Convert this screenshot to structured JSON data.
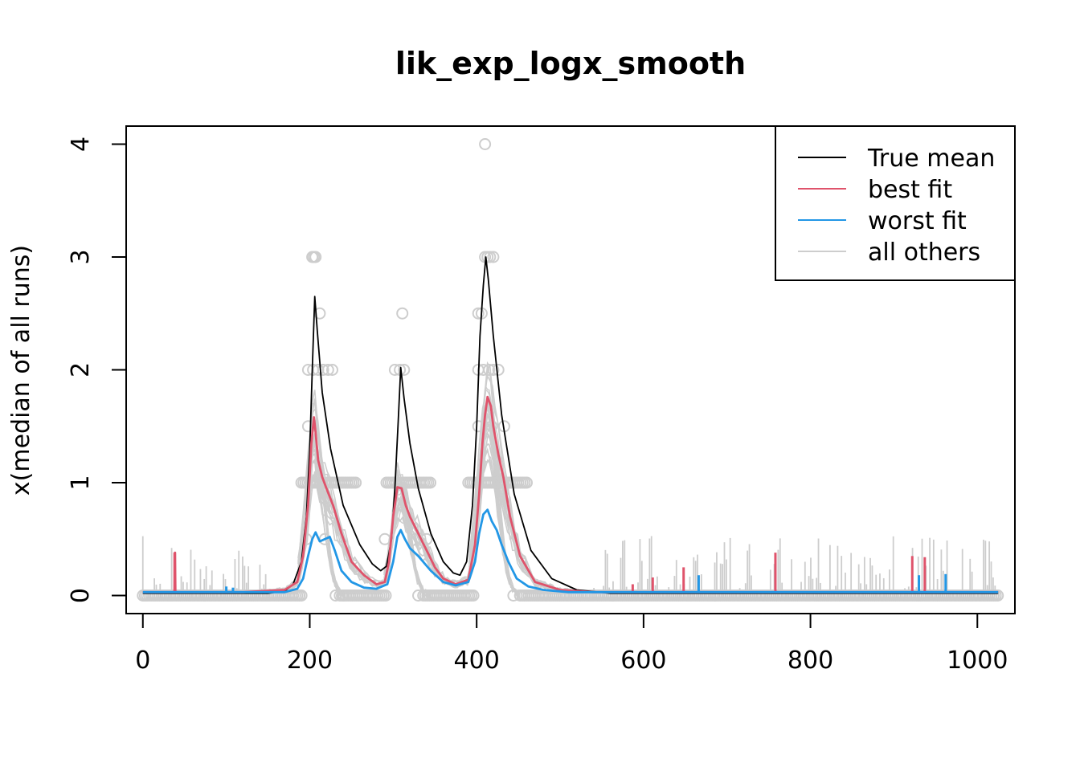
{
  "chart_data": {
    "type": "line",
    "title": "lik_exp_logx_smooth",
    "xlabel": "",
    "ylabel": "x(median of all runs)",
    "xlim": [
      -20,
      1045
    ],
    "ylim": [
      -0.16,
      4.16
    ],
    "xticks": [
      0,
      200,
      400,
      600,
      800,
      1000
    ],
    "yticks": [
      0,
      1,
      2,
      3,
      4
    ],
    "legend": {
      "position": "top-right",
      "entries": [
        {
          "label": "True mean",
          "color": "#000000"
        },
        {
          "label": "best fit",
          "color": "#DF536B"
        },
        {
          "label": "worst fit",
          "color": "#2297E6"
        },
        {
          "label": "all others",
          "color": "#CDCDCD"
        }
      ]
    },
    "true_mean_peaks": [
      {
        "x": 206,
        "y": 2.65
      },
      {
        "x": 309,
        "y": 2.02
      },
      {
        "x": 411,
        "y": 3.0
      }
    ],
    "series": [
      {
        "name": "True mean",
        "color": "#000000",
        "x": [
          0,
          150,
          170,
          180,
          190,
          196,
          200,
          203,
          206,
          209,
          215,
          225,
          240,
          260,
          275,
          285,
          292,
          298,
          302,
          306,
          309,
          313,
          320,
          330,
          345,
          360,
          372,
          380,
          388,
          395,
          400,
          404,
          408,
          411,
          414,
          420,
          430,
          445,
          465,
          490,
          520,
          560,
          1025
        ],
        "y": [
          0.02,
          0.02,
          0.04,
          0.1,
          0.3,
          0.7,
          1.3,
          2.0,
          2.65,
          2.35,
          1.8,
          1.3,
          0.8,
          0.45,
          0.28,
          0.22,
          0.26,
          0.5,
          0.95,
          1.55,
          2.02,
          1.75,
          1.35,
          0.95,
          0.55,
          0.3,
          0.2,
          0.18,
          0.3,
          0.8,
          1.5,
          2.3,
          2.75,
          3.0,
          2.8,
          2.3,
          1.6,
          0.9,
          0.4,
          0.15,
          0.05,
          0.02,
          0.02
        ]
      },
      {
        "name": "best fit",
        "color": "#DF536B",
        "x": [
          0,
          38,
          38.5,
          39,
          40,
          120,
          170,
          185,
          192,
          198,
          202,
          205,
          207,
          210,
          215,
          220,
          228,
          238,
          250,
          265,
          280,
          290,
          295,
          300,
          305,
          310,
          315,
          320,
          330,
          340,
          350,
          360,
          375,
          390,
          398,
          403,
          407,
          410,
          413,
          417,
          420,
          426,
          432,
          440,
          452,
          470,
          500,
          540,
          1025
        ],
        "y": [
          0.03,
          0.03,
          0.38,
          0.03,
          0.03,
          0.03,
          0.05,
          0.12,
          0.35,
          0.8,
          1.35,
          1.58,
          1.45,
          1.2,
          1.05,
          0.95,
          0.8,
          0.55,
          0.3,
          0.18,
          0.1,
          0.12,
          0.3,
          0.7,
          0.96,
          0.95,
          0.8,
          0.7,
          0.55,
          0.4,
          0.25,
          0.15,
          0.1,
          0.14,
          0.45,
          0.9,
          1.35,
          1.6,
          1.76,
          1.68,
          1.5,
          1.25,
          1.05,
          0.7,
          0.35,
          0.12,
          0.05,
          0.03,
          0.03
        ]
      },
      {
        "name": "worst fit",
        "color": "#2297E6",
        "x": [
          0,
          170,
          185,
          192,
          198,
          203,
          207,
          212,
          218,
          224,
          230,
          238,
          250,
          265,
          280,
          293,
          300,
          305,
          309,
          314,
          320,
          330,
          345,
          360,
          375,
          390,
          398,
          403,
          408,
          413,
          418,
          424,
          430,
          438,
          448,
          462,
          480,
          510,
          1025
        ],
        "y": [
          0.03,
          0.03,
          0.06,
          0.15,
          0.35,
          0.5,
          0.56,
          0.48,
          0.5,
          0.52,
          0.4,
          0.22,
          0.12,
          0.07,
          0.06,
          0.1,
          0.3,
          0.52,
          0.58,
          0.5,
          0.42,
          0.35,
          0.22,
          0.12,
          0.09,
          0.12,
          0.3,
          0.55,
          0.72,
          0.76,
          0.66,
          0.58,
          0.45,
          0.3,
          0.15,
          0.08,
          0.05,
          0.03,
          0.03
        ]
      }
    ],
    "spikes": {
      "best fit": [
        {
          "x": 38,
          "y": 0.38
        },
        {
          "x": 587,
          "y": 0.1
        },
        {
          "x": 611,
          "y": 0.16
        },
        {
          "x": 648,
          "y": 0.25
        },
        {
          "x": 758,
          "y": 0.38
        },
        {
          "x": 922,
          "y": 0.35
        },
        {
          "x": 937,
          "y": 0.34
        }
      ],
      "worst fit": [
        {
          "x": 100,
          "y": 0.08
        },
        {
          "x": 108,
          "y": 0.07
        },
        {
          "x": 666,
          "y": 0.18
        },
        {
          "x": 930,
          "y": 0.18
        },
        {
          "x": 962,
          "y": 0.19
        }
      ]
    },
    "all_others_peak_envelope": [
      {
        "center": 206,
        "y": 1.65,
        "width": 20
      },
      {
        "center": 309,
        "y": 1.05,
        "width": 20
      },
      {
        "center": 413,
        "y": 1.9,
        "width": 22
      }
    ],
    "observations": [
      {
        "x": 203,
        "y": 3
      },
      {
        "x": 207,
        "y": 3
      },
      {
        "x": 205,
        "y": 3
      },
      {
        "x": 410,
        "y": 3
      },
      {
        "x": 413,
        "y": 3
      },
      {
        "x": 416,
        "y": 3
      },
      {
        "x": 420,
        "y": 3
      },
      {
        "x": 410,
        "y": 4
      },
      {
        "x": 212,
        "y": 2.5
      },
      {
        "x": 311,
        "y": 2.5
      },
      {
        "x": 402,
        "y": 2.5
      },
      {
        "x": 406,
        "y": 2.5
      },
      {
        "x": 198,
        "y": 2
      },
      {
        "x": 204,
        "y": 2
      },
      {
        "x": 210,
        "y": 2
      },
      {
        "x": 216,
        "y": 2
      },
      {
        "x": 222,
        "y": 2
      },
      {
        "x": 227,
        "y": 2
      },
      {
        "x": 302,
        "y": 2
      },
      {
        "x": 308,
        "y": 2
      },
      {
        "x": 313,
        "y": 2
      },
      {
        "x": 402,
        "y": 2
      },
      {
        "x": 408,
        "y": 2
      },
      {
        "x": 415,
        "y": 2
      },
      {
        "x": 420,
        "y": 2
      },
      {
        "x": 426,
        "y": 2
      },
      {
        "x": 198,
        "y": 1.5
      },
      {
        "x": 402,
        "y": 1.5
      },
      {
        "x": 418,
        "y": 1.5
      },
      {
        "x": 433,
        "y": 1.5
      },
      {
        "x": 196,
        "y": 0.5
      },
      {
        "x": 218,
        "y": 0.5
      },
      {
        "x": 290,
        "y": 0.5
      },
      {
        "x": 340,
        "y": 0.5
      },
      {
        "x": 231,
        "y": 0
      },
      {
        "x": 240,
        "y": 0
      },
      {
        "x": 330,
        "y": 0
      },
      {
        "x": 444,
        "y": 0
      }
    ],
    "observation_runs": [
      {
        "y": 1,
        "from": 190,
        "to": 257
      },
      {
        "y": 1,
        "from": 292,
        "to": 346
      },
      {
        "y": 1,
        "from": 390,
        "to": 462
      },
      {
        "y": 0,
        "from": 0,
        "to": 190
      },
      {
        "y": 0,
        "from": 236,
        "to": 292
      },
      {
        "y": 0,
        "from": 336,
        "to": 396
      },
      {
        "y": 0,
        "from": 452,
        "to": 1025
      }
    ],
    "noise": {
      "x_from": 0,
      "x_to": 1025,
      "max_y": 0.5,
      "flat_ranges": [
        [
          150,
          190
        ],
        [
          500,
          540
        ]
      ]
    }
  }
}
